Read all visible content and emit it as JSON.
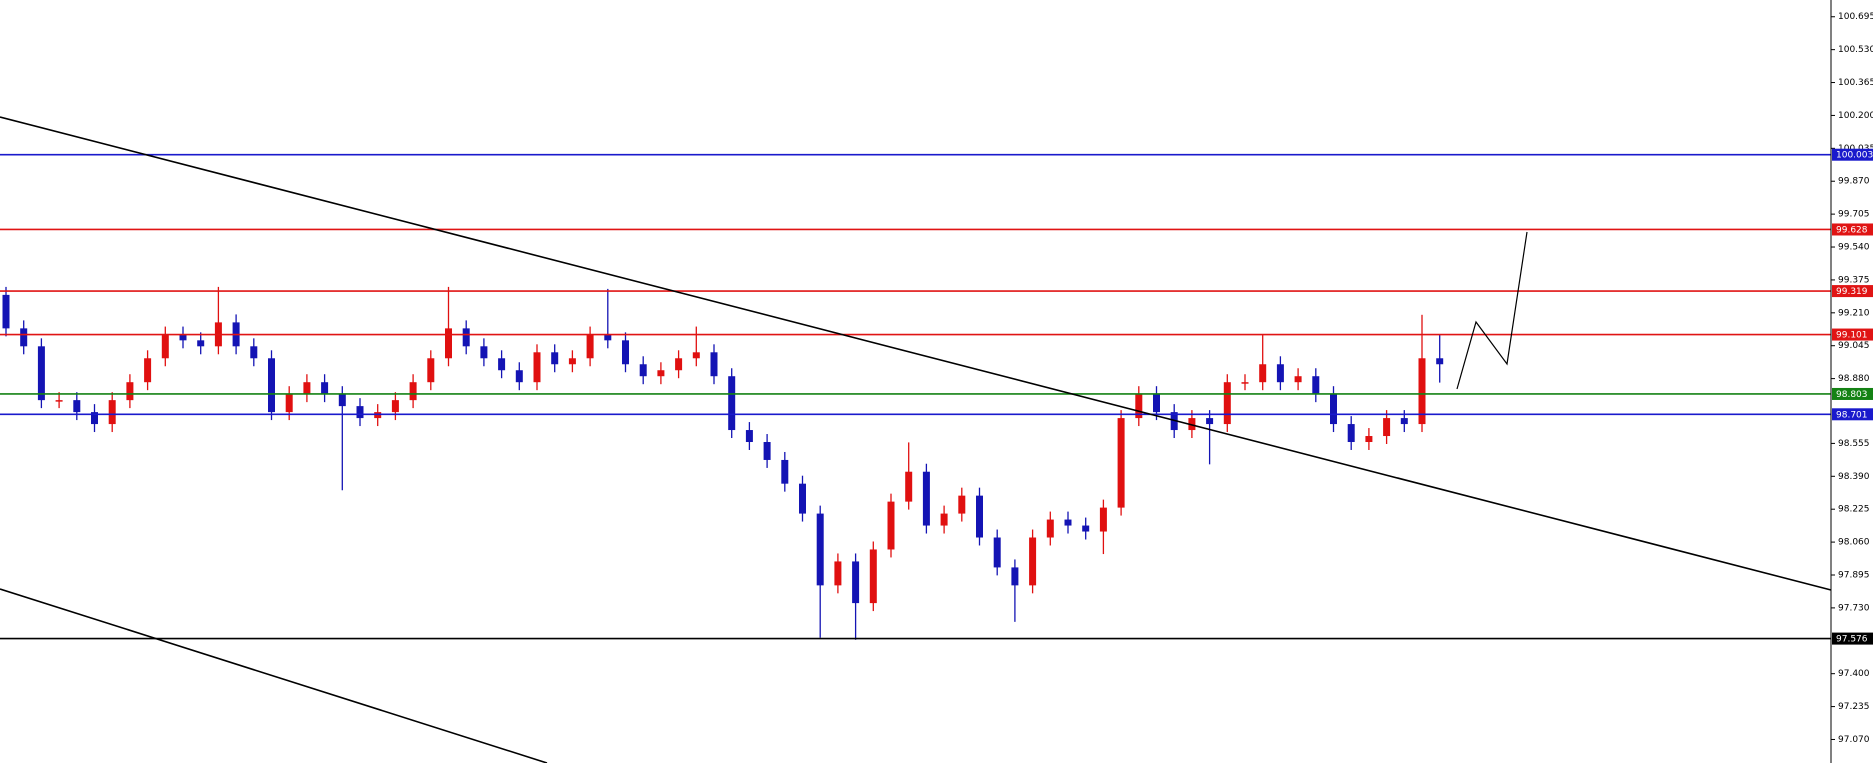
{
  "chart_data": {
    "type": "candlestick",
    "open": [
      99.3,
      99.132,
      99.042,
      98.772,
      98.772,
      98.712,
      98.652,
      98.772,
      98.862,
      98.982,
      99.101,
      99.072,
      99.042,
      99.162,
      99.042,
      98.982,
      98.712,
      98.802,
      98.862,
      98.802,
      98.742,
      98.682,
      98.712,
      98.772,
      98.862,
      98.982,
      99.132,
      99.042,
      98.982,
      98.922,
      98.862,
      99.012,
      98.952,
      98.982,
      99.101,
      99.072,
      98.952,
      98.892,
      98.922,
      98.982,
      99.012,
      98.892,
      98.622,
      98.562,
      98.472,
      98.353,
      98.203,
      97.843,
      97.963,
      97.754,
      98.023,
      98.263,
      98.413,
      98.143,
      98.203,
      98.293,
      98.083,
      97.933,
      97.843,
      98.083,
      98.173,
      98.143,
      98.113,
      98.233,
      98.682,
      98.802,
      98.712,
      98.622,
      98.682,
      98.652,
      98.862,
      98.862,
      98.952,
      98.862,
      98.892,
      98.802,
      98.652,
      98.562,
      98.592,
      98.682,
      98.652,
      98.982
    ],
    "high": [
      99.34,
      99.172,
      99.082,
      98.812,
      98.812,
      98.752,
      98.812,
      98.902,
      99.022,
      99.141,
      99.141,
      99.112,
      99.34,
      99.202,
      99.082,
      99.022,
      98.842,
      98.902,
      98.902,
      98.842,
      98.782,
      98.752,
      98.812,
      98.902,
      99.022,
      99.34,
      99.172,
      99.082,
      99.022,
      98.962,
      99.052,
      99.052,
      99.022,
      99.141,
      99.33,
      99.112,
      98.992,
      98.962,
      99.022,
      99.141,
      99.052,
      98.932,
      98.662,
      98.602,
      98.512,
      98.393,
      98.243,
      98.003,
      98.003,
      98.063,
      98.303,
      98.56,
      98.453,
      98.243,
      98.333,
      98.333,
      98.123,
      97.973,
      98.123,
      98.213,
      98.213,
      98.183,
      98.273,
      98.722,
      98.842,
      98.842,
      98.752,
      98.722,
      98.722,
      98.902,
      98.902,
      99.1,
      98.992,
      98.932,
      98.932,
      98.842,
      98.692,
      98.632,
      98.722,
      98.722,
      99.2,
      99.1
    ],
    "low": [
      99.092,
      99.002,
      98.732,
      98.732,
      98.672,
      98.612,
      98.612,
      98.732,
      98.822,
      98.942,
      99.032,
      99.002,
      99.002,
      99.002,
      98.942,
      98.672,
      98.672,
      98.762,
      98.762,
      98.32,
      98.642,
      98.642,
      98.672,
      98.732,
      98.822,
      98.942,
      99.002,
      98.942,
      98.882,
      98.822,
      98.822,
      98.912,
      98.912,
      98.942,
      99.032,
      98.912,
      98.852,
      98.852,
      98.882,
      98.942,
      98.852,
      98.582,
      98.522,
      98.432,
      98.313,
      98.163,
      97.58,
      97.803,
      97.57,
      97.714,
      97.983,
      98.223,
      98.103,
      98.103,
      98.163,
      98.043,
      97.893,
      97.66,
      97.803,
      98.043,
      98.103,
      98.073,
      98.0,
      98.193,
      98.642,
      98.672,
      98.582,
      98.582,
      98.45,
      98.612,
      98.822,
      98.822,
      98.822,
      98.822,
      98.762,
      98.612,
      98.522,
      98.522,
      98.552,
      98.612,
      98.612,
      98.86
    ],
    "close": [
      99.132,
      99.042,
      98.772,
      98.772,
      98.712,
      98.652,
      98.772,
      98.862,
      98.982,
      99.101,
      99.072,
      99.042,
      99.162,
      99.042,
      98.982,
      98.712,
      98.802,
      98.862,
      98.802,
      98.742,
      98.682,
      98.712,
      98.772,
      98.862,
      98.982,
      99.132,
      99.042,
      98.982,
      98.922,
      98.862,
      99.012,
      98.952,
      98.982,
      99.101,
      99.072,
      98.952,
      98.892,
      98.922,
      98.982,
      99.012,
      98.892,
      98.622,
      98.562,
      98.472,
      98.353,
      98.203,
      97.843,
      97.963,
      97.754,
      98.023,
      98.263,
      98.413,
      98.143,
      98.203,
      98.293,
      98.083,
      97.933,
      97.843,
      98.083,
      98.173,
      98.143,
      98.113,
      98.233,
      98.682,
      98.802,
      98.712,
      98.622,
      98.682,
      98.652,
      98.862,
      98.862,
      98.952,
      98.862,
      98.892,
      98.802,
      98.652,
      98.562,
      98.592,
      98.682,
      98.652,
      98.982,
      98.952
    ],
    "up_color": "#e01010",
    "down_color": "#1414b4",
    "levels": [
      {
        "value": 100.003,
        "color": "#1a1acc"
      },
      {
        "value": 99.628,
        "color": "#e01414"
      },
      {
        "value": 99.319,
        "color": "#e01414"
      },
      {
        "value": 99.101,
        "color": "#e01414"
      },
      {
        "value": 98.803,
        "color": "#148214"
      },
      {
        "value": 98.701,
        "color": "#1a1acc"
      },
      {
        "value": 97.576,
        "color": "#000000"
      }
    ],
    "ylim": [
      96.952,
      100.779
    ],
    "yticks": [
      100.695,
      {
        "value": 100.53,
        "label": "100.530"
      },
      100.365,
      {
        "value": 100.2,
        "label": "100.200"
      },
      100.035,
      {
        "value": 99.87,
        "label": "99.870"
      },
      99.705,
      {
        "value": 99.54,
        "label": "99.540"
      },
      99.375,
      {
        "value": 99.21,
        "label": "99.210"
      },
      99.045,
      {
        "value": 98.88,
        "label": "98.880"
      },
      98.555,
      {
        "value": 98.39,
        "label": "98.390"
      },
      98.225,
      {
        "value": 98.06,
        "label": "98.060"
      },
      97.895,
      {
        "value": 97.73,
        "label": "97.730"
      },
      {
        "value": 97.4,
        "label": "97.400"
      },
      97.235,
      {
        "value": 97.07,
        "label": "97.070"
      }
    ],
    "grid": false
  }
}
